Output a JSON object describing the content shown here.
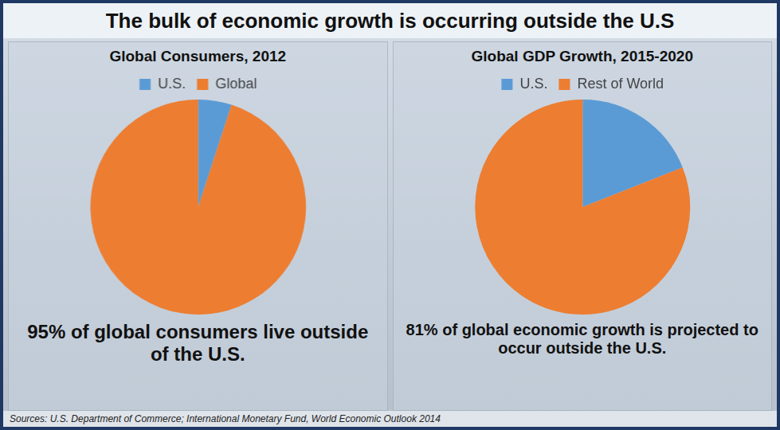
{
  "title": "The bulk of economic growth is occurring outside the U.S",
  "sources": "Sources: U.S. Department of Commerce; International Monetary Fund, World Economic Outlook 2014",
  "chart_data": [
    {
      "type": "pie",
      "title": "Global Consumers, 2012",
      "categories": [
        "U.S.",
        "Global"
      ],
      "values": [
        5,
        95
      ],
      "colors": [
        "#5b9bd5",
        "#ed7d31"
      ],
      "legend": "top",
      "annotation": "95% of global consumers live outside of the U.S."
    },
    {
      "type": "pie",
      "title": "Global GDP Growth, 2015-2020",
      "categories": [
        "U.S.",
        "Rest of World"
      ],
      "values": [
        19,
        81
      ],
      "colors": [
        "#5b9bd5",
        "#ed7d31"
      ],
      "legend": "top",
      "annotation": "81% of global economic growth is projected to occur outside the U.S."
    }
  ]
}
